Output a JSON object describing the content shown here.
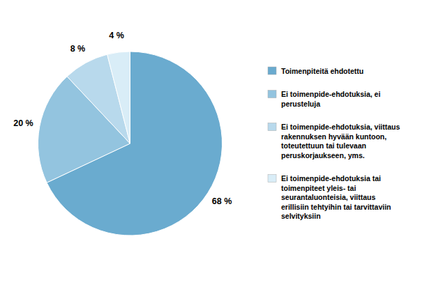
{
  "chart_data": {
    "type": "pie",
    "categories": [
      "Toimenpiteitä ehdotettu",
      "Ei toimenpide-ehdotuksia, ei\nperusteluja",
      "Ei toimenpide-ehdotuksia, viittaus\nrakennuksen hyvään kuntoon,\ntoteutettuun tai tulevaan\nperuskorjaukseen, yms.",
      "Ei toimenpide-ehdotuksia tai\ntoimenpiteet yleis- tai\nseurantaluonteisia, viittaus\nerillisiin tehtyihin tai tarvittaviin\nselvityksiin"
    ],
    "values": [
      68,
      20,
      8,
      4
    ],
    "value_labels": [
      "68 %",
      "20 %",
      "8 %",
      "4 %"
    ],
    "colors": [
      "#6aabcf",
      "#93c4df",
      "#b8d9ec",
      "#d9edf7"
    ],
    "data_labels": true,
    "legend": "right"
  }
}
